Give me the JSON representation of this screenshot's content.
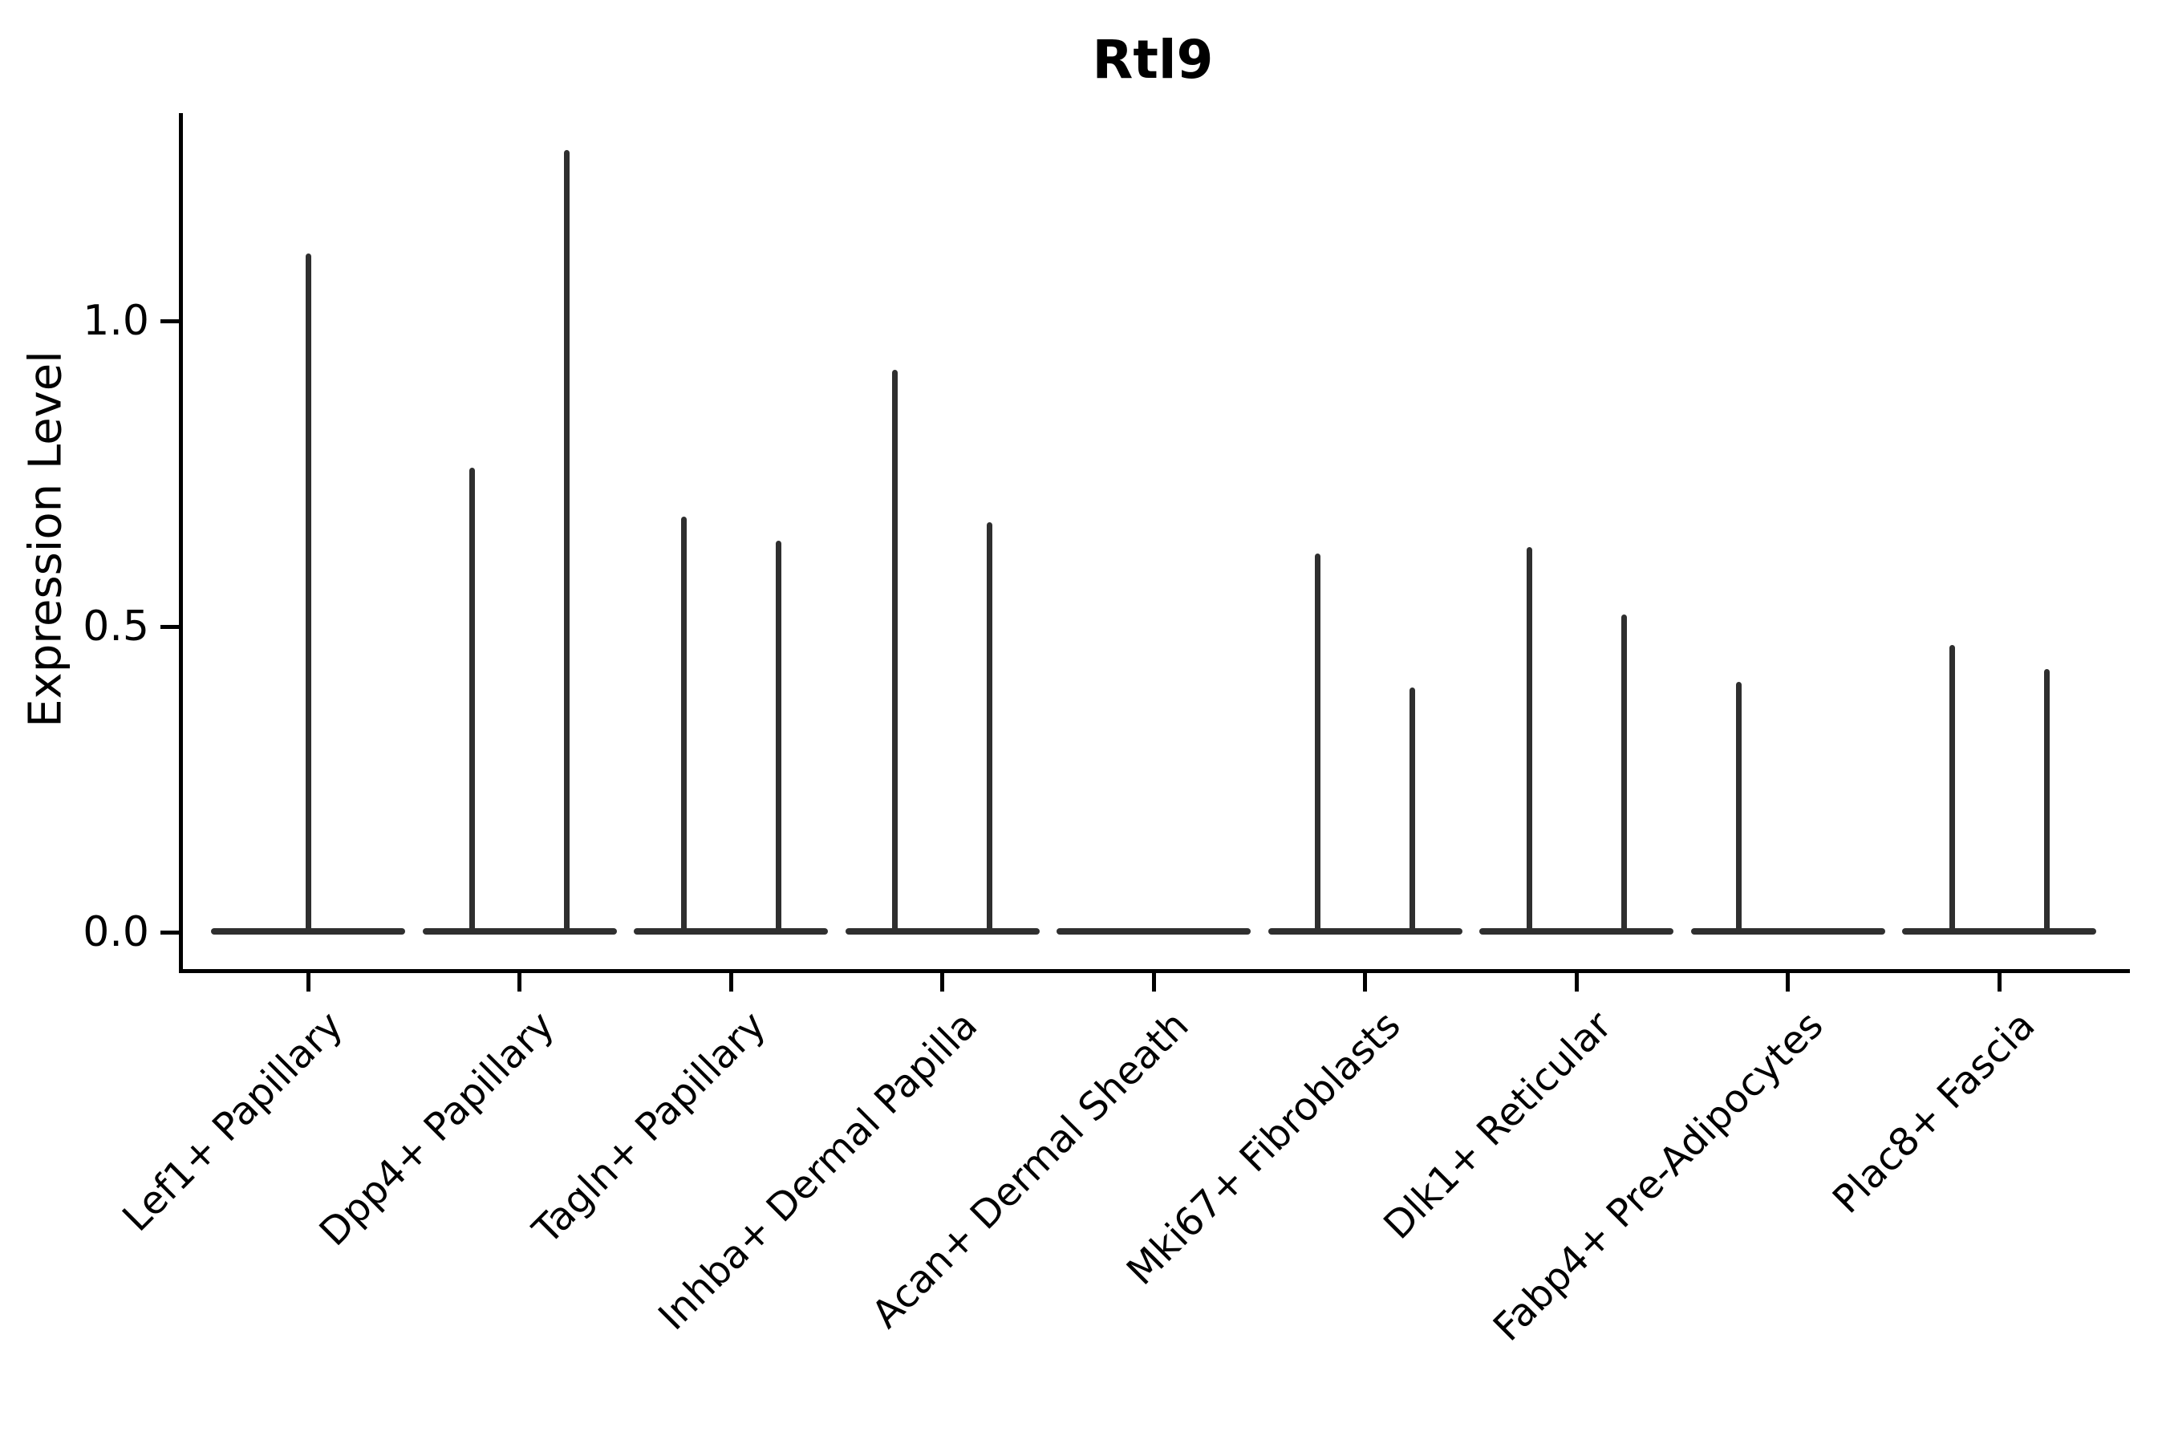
{
  "title": "Rtl9",
  "ylabel": "Expression Level",
  "chart_data": {
    "type": "violin",
    "title": "Rtl9",
    "xlabel": "",
    "ylabel": "Expression Level",
    "ylim": [
      -0.06,
      1.33
    ],
    "yticks": [
      0.0,
      0.5,
      1.0
    ],
    "ytick_labels": [
      "0.0",
      "0.5",
      "1.0"
    ],
    "grid": false,
    "legend": "none",
    "violin_color": "#2f2f2f",
    "axis_color": "#000000",
    "categories": [
      "Lef1+ Papillary",
      "Dpp4+ Papillary",
      "Tagln+ Papillary",
      "Inhba+ Dermal Papilla",
      "Acan+ Dermal Sheath",
      "Mki67+ Fibroblasts",
      "Dlk1+ Reticular",
      "Fabp4+ Pre-Adipocytes",
      "Plac8+ Fascia"
    ],
    "description": "Violin plot; each violin is flat at expression 0 with a thin vertical spike rising to the maximum expression value; dx is the spike offset in px from the category center (sub-violins at +/-59).",
    "series": [
      {
        "category": "Lef1+ Papillary",
        "spikes": [
          {
            "dx": 0,
            "max": 1.11
          }
        ]
      },
      {
        "category": "Dpp4+ Papillary",
        "spikes": [
          {
            "dx": -59,
            "max": 0.76
          },
          {
            "dx": 59,
            "max": 1.28
          }
        ]
      },
      {
        "category": "Tagln+ Papillary",
        "spikes": [
          {
            "dx": -59,
            "max": 0.68
          },
          {
            "dx": 59,
            "max": 0.64
          }
        ]
      },
      {
        "category": "Inhba+ Dermal Papilla",
        "spikes": [
          {
            "dx": -59,
            "max": 0.92
          },
          {
            "dx": 59,
            "max": 0.67
          }
        ]
      },
      {
        "category": "Acan+ Dermal Sheath",
        "spikes": []
      },
      {
        "category": "Mki67+ Fibroblasts",
        "spikes": [
          {
            "dx": -59,
            "max": 0.62
          },
          {
            "dx": 59,
            "max": 0.4
          }
        ]
      },
      {
        "category": "Dlk1+ Reticular",
        "spikes": [
          {
            "dx": -59,
            "max": 0.63
          },
          {
            "dx": 59,
            "max": 0.52
          }
        ]
      },
      {
        "category": "Fabp4+ Pre-Adipocytes",
        "spikes": [
          {
            "dx": -61,
            "max": 0.41
          }
        ]
      },
      {
        "category": "Plac8+ Fascia",
        "spikes": [
          {
            "dx": -59,
            "max": 0.47
          },
          {
            "dx": 59,
            "max": 0.43
          }
        ]
      }
    ]
  }
}
